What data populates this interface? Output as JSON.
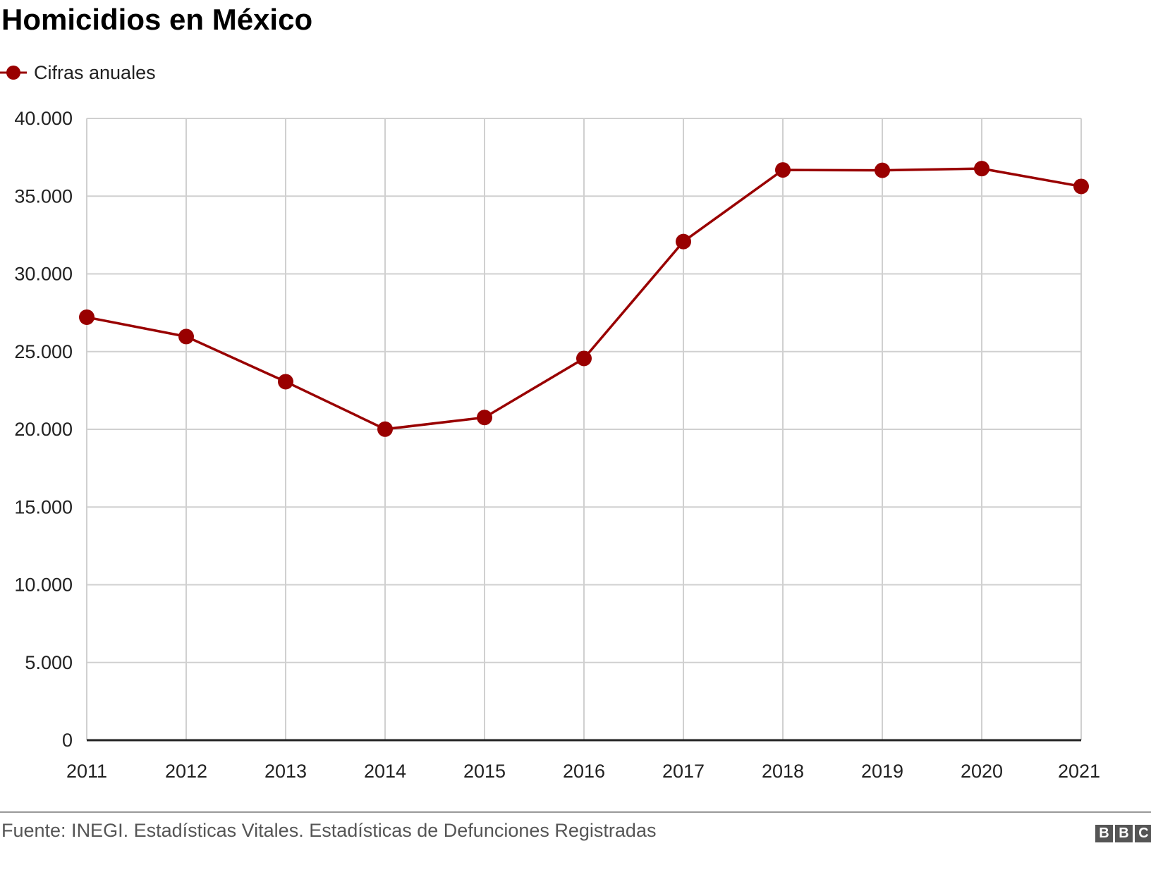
{
  "chart_data": {
    "type": "line",
    "title": "Homicidios en México",
    "xlabel": "",
    "ylabel": "",
    "ylim": [
      0,
      40000
    ],
    "yticks": [
      0,
      5000,
      10000,
      15000,
      20000,
      25000,
      30000,
      35000,
      40000
    ],
    "ytick_labels": [
      "0",
      "5.000",
      "10.000",
      "15.000",
      "20.000",
      "25.000",
      "30.000",
      "35.000",
      "40.000"
    ],
    "x": [
      "2011",
      "2012",
      "2013",
      "2014",
      "2015",
      "2016",
      "2017",
      "2018",
      "2019",
      "2020",
      "2021"
    ],
    "grid": true,
    "legend_position": "top-left",
    "series": [
      {
        "name": "Cifras anuales",
        "color": "#990000",
        "values": [
          27213,
          25967,
          23063,
          20010,
          20762,
          24559,
          32079,
          36685,
          36661,
          36773,
          35625
        ]
      }
    ]
  },
  "footer": {
    "source": "Fuente: INEGI. Estadísticas Vitales. Estadísticas de Defunciones Registradas",
    "logo": "BBC"
  }
}
